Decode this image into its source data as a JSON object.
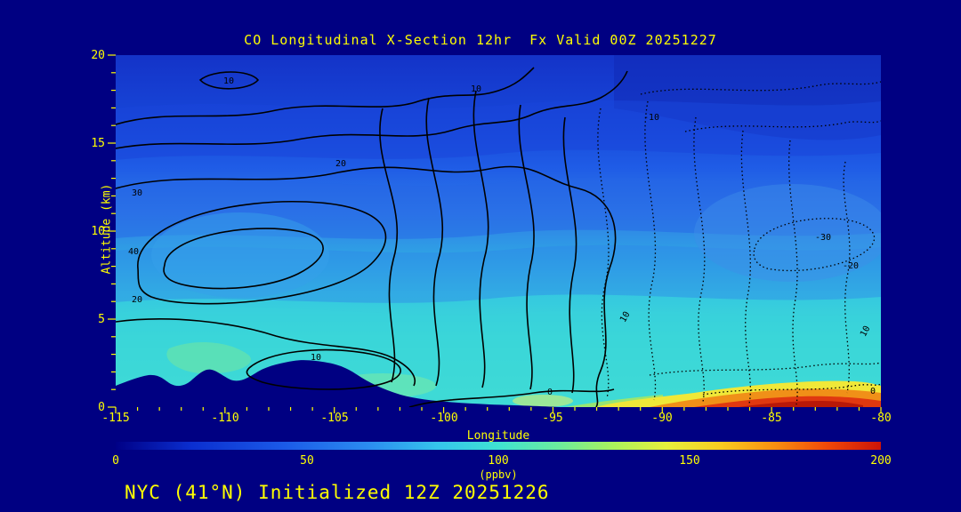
{
  "title": "CO Longitudinal X-Section 12hr  Fx Valid 00Z 20251227",
  "footer": "NYC (41°N) Initialized 12Z 20251226",
  "axes": {
    "x_label": "Longitude",
    "y_label": "Altitude (km)",
    "x_ticks": [
      "-115",
      "-110",
      "-105",
      "-100",
      "-95",
      "-90",
      "-85",
      "-80"
    ],
    "y_ticks": [
      "0",
      "5",
      "10",
      "15",
      "20"
    ]
  },
  "colorbar": {
    "ticks": [
      "0",
      "50",
      "100",
      "150",
      "200"
    ],
    "units": "(ppbv)",
    "min": 0,
    "max": 200,
    "palette": [
      "#000086",
      "#1b5ae8",
      "#2b8cf0",
      "#3fe2d2",
      "#aaf25c",
      "#e6f03c",
      "#f89010",
      "#cc1408"
    ]
  },
  "contours": {
    "solid_labels": [
      "10",
      "20",
      "10",
      "30",
      "40",
      "20",
      "10",
      "0"
    ],
    "dashed_labels": [
      "-10",
      "-30",
      "-20",
      "10",
      "10",
      "0"
    ]
  },
  "chart_data": {
    "type": "heatmap",
    "title": "CO Longitudinal X-Section 12hr Fx Valid 00Z 20251227",
    "xlabel": "Longitude",
    "ylabel": "Altitude (km)",
    "xlim": [
      -115,
      -80
    ],
    "ylim": [
      0,
      20
    ],
    "colorbar_label": "(ppbv)",
    "colorbar_range": [
      0,
      200
    ],
    "x": [
      -115,
      -110,
      -105,
      -100,
      -95,
      -90,
      -85,
      -80
    ],
    "y_km": [
      0,
      2,
      5,
      10,
      15,
      20
    ],
    "values_ppbv": [
      [
        75,
        80,
        85,
        80,
        85,
        110,
        195,
        160
      ],
      [
        80,
        85,
        80,
        75,
        70,
        70,
        75,
        70
      ],
      [
        70,
        72,
        70,
        65,
        62,
        60,
        60,
        58
      ],
      [
        60,
        62,
        58,
        55,
        52,
        50,
        52,
        50
      ],
      [
        45,
        46,
        44,
        42,
        40,
        40,
        42,
        40
      ],
      [
        35,
        33,
        35,
        34,
        32,
        30,
        30,
        30
      ]
    ],
    "overlay_contours": {
      "solid_levels": [
        0,
        10,
        20,
        30,
        40
      ],
      "dashed_levels": [
        -30,
        -20,
        -10
      ],
      "note": "black solid contours left/center, dotted contours right half; terrain silhouette masked in background navy at lower left; high CO plume (yellow-orange-red) near surface between -92 and -80"
    },
    "annotations": {
      "station": "NYC (41°N)",
      "initialized": "12Z 20251226",
      "forecast_hour": "12hr",
      "valid": "00Z 20251227"
    }
  }
}
